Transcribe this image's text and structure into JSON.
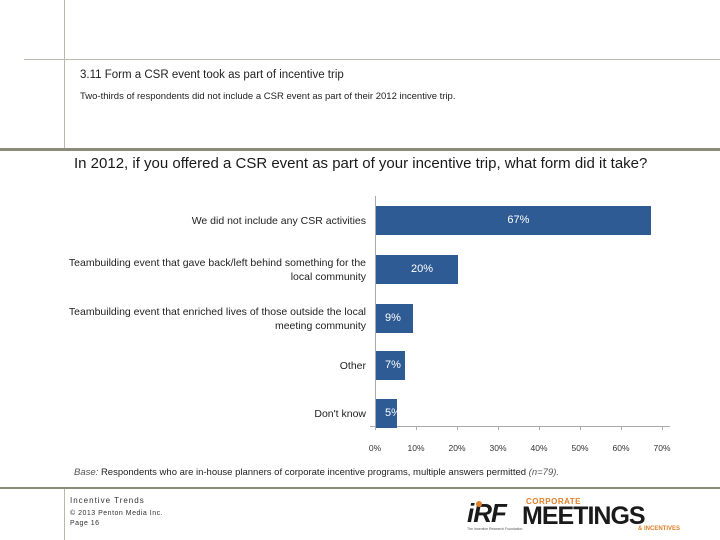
{
  "section": {
    "title": "3.11 Form a CSR event took as part of incentive trip",
    "subtitle": "Two-thirds of respondents did not include a CSR event as part of their 2012 incentive trip."
  },
  "chart_data": {
    "type": "bar",
    "orientation": "horizontal",
    "title": "In 2012, if you offered a CSR event as part of your incentive trip, what form did it take?",
    "categories": [
      "We did not include any CSR activities",
      "Teambuilding event that gave back/left behind something for the local community",
      "Teambuilding event that enriched lives of those outside the local meeting community",
      "Other",
      "Don't know"
    ],
    "values": [
      67,
      20,
      9,
      7,
      5
    ],
    "value_labels": [
      "67%",
      "20%",
      "9%",
      "7%",
      "5%"
    ],
    "xlim": [
      0,
      70
    ],
    "ticks": [
      "0%",
      "10%",
      "20%",
      "30%",
      "40%",
      "50%",
      "60%",
      "70%"
    ],
    "bar_color": "#2e5b94",
    "xlabel": "",
    "ylabel": ""
  },
  "base": {
    "label": "Base:",
    "text": "Respondents who are in-house planners of corporate incentive programs, multiple answers permitted",
    "n": "(n=79)."
  },
  "footer": {
    "line1": "Incentive Trends",
    "line2": "© 2013 Penton Media Inc.",
    "line3": "Page 16"
  },
  "logos": {
    "irf": "iRF",
    "irf_small": "The Incentive Research Foundation",
    "corporate": "CORPORATE",
    "meetings": "MEETINGS",
    "incentives": "& INCENTIVES",
    "accent_color": "#e0802a"
  }
}
